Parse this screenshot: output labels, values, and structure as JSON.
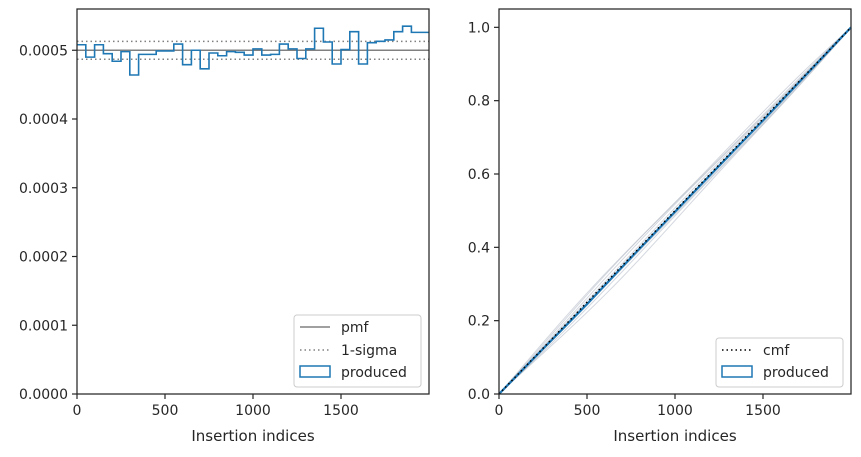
{
  "chart_data": [
    {
      "type": "line",
      "panel": "left",
      "xlabel": "Insertion indices",
      "ylabel": "",
      "xlim": [
        0,
        2000
      ],
      "ylim": [
        0,
        0.00056
      ],
      "xticks": [
        0,
        500,
        1000,
        1500
      ],
      "yticks": [
        0,
        0.0001,
        0.0002,
        0.0003,
        0.0004,
        0.0005
      ],
      "ytick_labels": [
        "0.0000",
        "0.0001",
        "0.0002",
        "0.0003",
        "0.0004",
        "0.0005"
      ],
      "xtick_labels": [
        "0",
        "500",
        "1000",
        "1500"
      ],
      "legend": {
        "location": "bottom-right",
        "entries": [
          "pmf",
          "1-sigma",
          "produced"
        ]
      },
      "pmf": 0.0005,
      "sigma_band": [
        0.000487,
        0.000513
      ],
      "histogram": {
        "name": "produced",
        "bin_width": 50,
        "bin_edges_start": 0,
        "values": [
          0.000508,
          0.00049,
          0.000508,
          0.000495,
          0.000484,
          0.000498,
          0.000464,
          0.000494,
          0.000494,
          0.000499,
          0.000499,
          0.000509,
          0.000479,
          0.0005,
          0.000473,
          0.000496,
          0.000492,
          0.000498,
          0.000497,
          0.000493,
          0.000502,
          0.000493,
          0.000494,
          0.000509,
          0.000502,
          0.000488,
          0.000502,
          0.000532,
          0.000512,
          0.00048,
          0.000501,
          0.000527,
          0.00048,
          0.000511,
          0.000513,
          0.000515,
          0.000527,
          0.000535,
          0.000526,
          0.000526
        ]
      }
    },
    {
      "type": "line",
      "panel": "right",
      "xlabel": "Insertion indices",
      "ylabel": "",
      "xlim": [
        0,
        2000
      ],
      "ylim": [
        0,
        1.05
      ],
      "xticks": [
        0,
        500,
        1000,
        1500
      ],
      "xtick_labels": [
        "0",
        "500",
        "1000",
        "1500"
      ],
      "yticks": [
        0,
        0.2,
        0.4,
        0.6,
        0.8,
        1.0
      ],
      "ytick_labels": [
        "0.0",
        "0.2",
        "0.4",
        "0.6",
        "0.8",
        "1.0"
      ],
      "legend": {
        "location": "bottom-right",
        "entries": [
          "cmf",
          "produced"
        ]
      },
      "cmf": {
        "x": [
          0,
          2000
        ],
        "y": [
          0,
          1.0
        ]
      },
      "produced_cdf_note": "empirical cdf closely follows cmf; faint grey sample bands around diagonal",
      "series": [
        {
          "name": "produced",
          "x": [
            0,
            250,
            500,
            750,
            1000,
            1250,
            1500,
            1750,
            2000
          ],
          "y": [
            0,
            0.123,
            0.245,
            0.372,
            0.497,
            0.622,
            0.746,
            0.873,
            1.0
          ]
        }
      ]
    }
  ]
}
